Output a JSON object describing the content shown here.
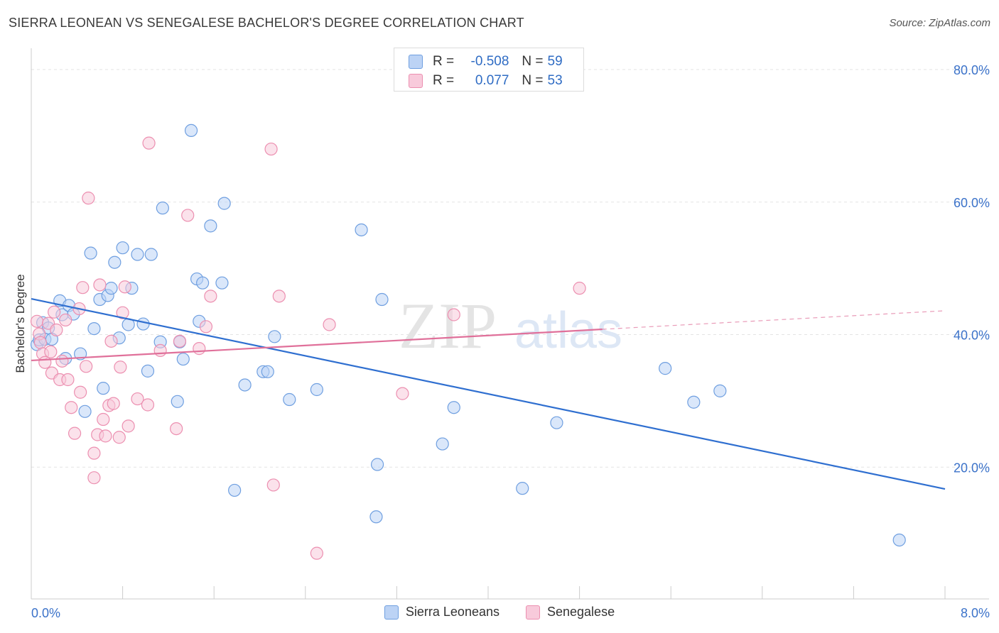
{
  "title": "SIERRA LEONEAN VS SENEGALESE BACHELOR'S DEGREE CORRELATION CHART",
  "source": "Source: ZipAtlas.com",
  "watermark": {
    "zip": "ZIP",
    "atlas": "atlas"
  },
  "stats": [
    {
      "r_label": "R =",
      "r": "-0.508",
      "n_label": "N =",
      "n": "59",
      "color": "#6f9fe0",
      "fill": "#bcd3f5"
    },
    {
      "r_label": "R =",
      "r": "0.077",
      "n_label": "N =",
      "n": "53",
      "color": "#ec8fb0",
      "fill": "#f8cadb"
    }
  ],
  "legend": [
    {
      "label": "Sierra Leoneans",
      "color": "#6f9fe0",
      "fill": "#bcd3f5"
    },
    {
      "label": "Senegalese",
      "color": "#ec8fb0",
      "fill": "#f8cadb"
    }
  ],
  "chart_data": {
    "type": "scatter",
    "title": "SIERRA LEONEAN VS SENEGALESE BACHELOR'S DEGREE CORRELATION CHART",
    "xlabel": "",
    "ylabel": "Bachelor's Degree",
    "xlim": [
      0,
      8
    ],
    "ylim": [
      0,
      80
    ],
    "x_tick_labels": [
      "0.0%",
      "8.0%"
    ],
    "y_ticks": [
      20,
      40,
      60,
      80
    ],
    "y_tick_labels": [
      "20.0%",
      "40.0%",
      "60.0%",
      "80.0%"
    ],
    "grid": true,
    "legend_position": "bottom",
    "series": [
      {
        "name": "Sierra Leoneans",
        "color": "#2f6fd0",
        "fill": "#bcd3f5",
        "stroke": "#6f9fe0",
        "trend": {
          "x0": 0,
          "y0": 45.4,
          "x1": 8.0,
          "y1": 16.7,
          "dashed_from": null
        },
        "points": [
          [
            0.05,
            38.5
          ],
          [
            0.07,
            39.2
          ],
          [
            0.1,
            41.8
          ],
          [
            0.12,
            39.3
          ],
          [
            0.15,
            41.0
          ],
          [
            0.18,
            39.3
          ],
          [
            0.25,
            45.1
          ],
          [
            0.27,
            43.0
          ],
          [
            0.3,
            36.4
          ],
          [
            0.33,
            44.4
          ],
          [
            0.37,
            43.1
          ],
          [
            0.43,
            37.1
          ],
          [
            0.47,
            28.4
          ],
          [
            0.52,
            52.3
          ],
          [
            0.55,
            40.9
          ],
          [
            0.6,
            45.3
          ],
          [
            0.63,
            31.9
          ],
          [
            0.67,
            45.9
          ],
          [
            0.7,
            47.0
          ],
          [
            0.73,
            50.9
          ],
          [
            0.77,
            39.5
          ],
          [
            0.8,
            53.1
          ],
          [
            0.85,
            41.5
          ],
          [
            0.88,
            47.0
          ],
          [
            0.93,
            52.1
          ],
          [
            0.98,
            41.6
          ],
          [
            1.02,
            34.5
          ],
          [
            1.05,
            52.1
          ],
          [
            1.13,
            38.9
          ],
          [
            1.15,
            59.1
          ],
          [
            1.28,
            29.9
          ],
          [
            1.3,
            38.9
          ],
          [
            1.33,
            36.3
          ],
          [
            1.4,
            70.8
          ],
          [
            1.45,
            48.4
          ],
          [
            1.47,
            42.0
          ],
          [
            1.5,
            47.8
          ],
          [
            1.57,
            56.4
          ],
          [
            1.67,
            47.8
          ],
          [
            1.69,
            59.8
          ],
          [
            1.78,
            16.5
          ],
          [
            1.87,
            32.4
          ],
          [
            2.03,
            34.4
          ],
          [
            2.07,
            34.4
          ],
          [
            2.13,
            39.7
          ],
          [
            2.26,
            30.2
          ],
          [
            2.5,
            31.7
          ],
          [
            2.89,
            55.8
          ],
          [
            3.02,
            12.5
          ],
          [
            3.03,
            20.4
          ],
          [
            3.07,
            45.3
          ],
          [
            3.6,
            23.5
          ],
          [
            3.7,
            29.0
          ],
          [
            4.3,
            16.8
          ],
          [
            4.6,
            26.7
          ],
          [
            5.55,
            34.9
          ],
          [
            5.8,
            29.8
          ],
          [
            6.03,
            31.5
          ],
          [
            7.6,
            9.0
          ]
        ]
      },
      {
        "name": "Senegalese",
        "color": "#e0709a",
        "fill": "#f8cadb",
        "stroke": "#ec8fb0",
        "trend": {
          "x0": 0,
          "y0": 36.1,
          "x1": 5.0,
          "y1": 40.8,
          "dashed_to": 8.0,
          "dashed_y": 43.6
        },
        "points": [
          [
            0.05,
            42.0
          ],
          [
            0.07,
            40.1
          ],
          [
            0.08,
            38.8
          ],
          [
            0.1,
            37.1
          ],
          [
            0.12,
            35.8
          ],
          [
            0.15,
            41.7
          ],
          [
            0.17,
            37.4
          ],
          [
            0.18,
            34.2
          ],
          [
            0.2,
            43.4
          ],
          [
            0.22,
            40.7
          ],
          [
            0.25,
            33.2
          ],
          [
            0.27,
            36.0
          ],
          [
            0.3,
            42.2
          ],
          [
            0.32,
            33.2
          ],
          [
            0.35,
            29.0
          ],
          [
            0.38,
            25.1
          ],
          [
            0.42,
            43.9
          ],
          [
            0.43,
            31.3
          ],
          [
            0.45,
            47.1
          ],
          [
            0.48,
            35.2
          ],
          [
            0.5,
            60.6
          ],
          [
            0.55,
            18.4
          ],
          [
            0.55,
            22.1
          ],
          [
            0.58,
            24.9
          ],
          [
            0.6,
            47.5
          ],
          [
            0.63,
            27.2
          ],
          [
            0.65,
            24.7
          ],
          [
            0.68,
            29.3
          ],
          [
            0.7,
            39.0
          ],
          [
            0.72,
            29.6
          ],
          [
            0.77,
            24.5
          ],
          [
            0.78,
            35.1
          ],
          [
            0.8,
            43.3
          ],
          [
            0.82,
            47.2
          ],
          [
            0.85,
            26.2
          ],
          [
            0.93,
            30.3
          ],
          [
            1.02,
            29.4
          ],
          [
            1.03,
            68.9
          ],
          [
            1.13,
            37.6
          ],
          [
            1.27,
            25.8
          ],
          [
            1.3,
            39.0
          ],
          [
            1.37,
            58.0
          ],
          [
            1.47,
            37.9
          ],
          [
            1.53,
            41.2
          ],
          [
            1.57,
            45.8
          ],
          [
            2.1,
            68.0
          ],
          [
            2.12,
            17.3
          ],
          [
            2.17,
            45.8
          ],
          [
            2.5,
            7.0
          ],
          [
            2.61,
            41.5
          ],
          [
            3.25,
            31.1
          ],
          [
            3.7,
            43.0
          ],
          [
            4.8,
            47.0
          ]
        ]
      }
    ]
  }
}
